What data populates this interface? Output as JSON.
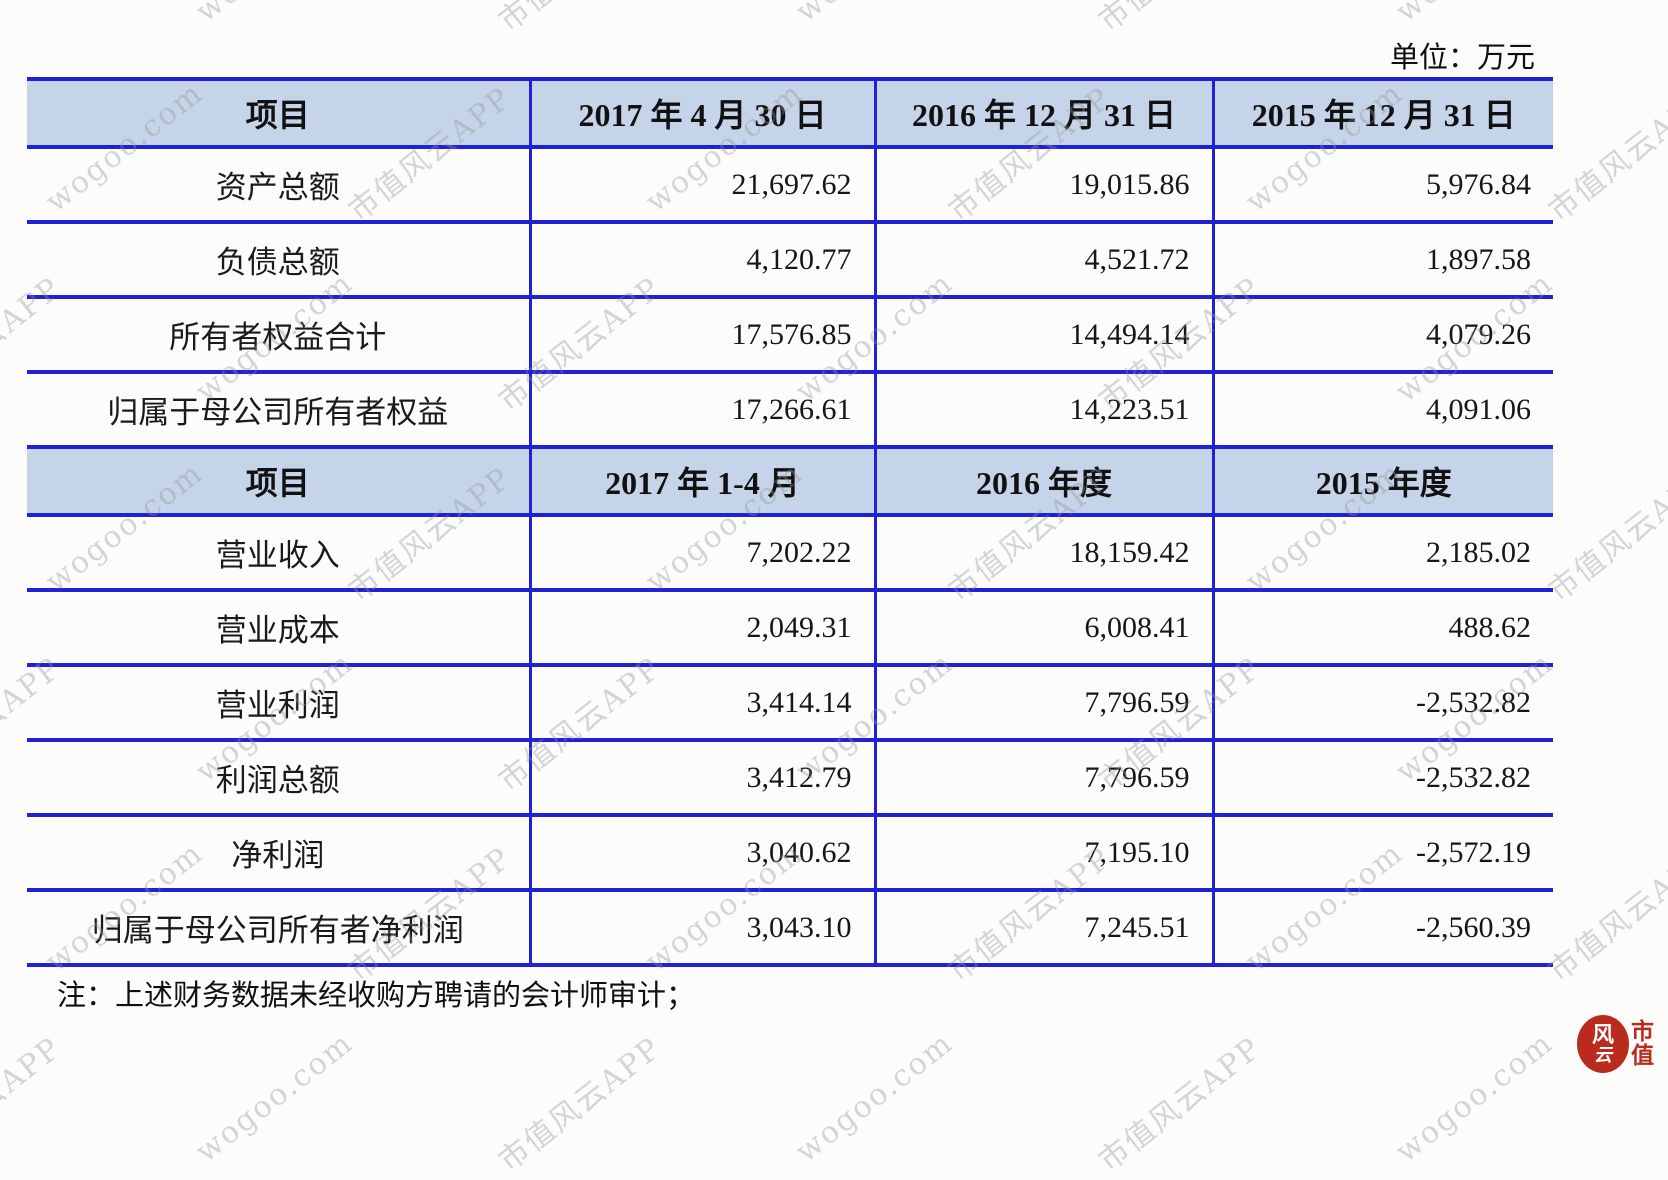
{
  "unit_label": "单位：万元",
  "table": {
    "sections": [
      {
        "header": [
          "项目",
          "2017 年 4 月 30 日",
          "2016 年 12 月 31 日",
          "2015 年 12 月 31 日"
        ],
        "rows": [
          [
            "资产总额",
            "21,697.62",
            "19,015.86",
            "5,976.84"
          ],
          [
            "负债总额",
            "4,120.77",
            "4,521.72",
            "1,897.58"
          ],
          [
            "所有者权益合计",
            "17,576.85",
            "14,494.14",
            "4,079.26"
          ],
          [
            "归属于母公司所有者权益",
            "17,266.61",
            "14,223.51",
            "4,091.06"
          ]
        ]
      },
      {
        "header": [
          "项目",
          "2017 年 1-4 月",
          "2016 年度",
          "2015 年度"
        ],
        "rows": [
          [
            "营业收入",
            "7,202.22",
            "18,159.42",
            "2,185.02"
          ],
          [
            "营业成本",
            "2,049.31",
            "6,008.41",
            "488.62"
          ],
          [
            "营业利润",
            "3,414.14",
            "7,796.59",
            "-2,532.82"
          ],
          [
            "利润总额",
            "3,412.79",
            "7,796.59",
            "-2,532.82"
          ],
          [
            "净利润",
            "3,040.62",
            "7,195.10",
            "-2,572.19"
          ],
          [
            "归属于母公司所有者净利润",
            "3,043.10",
            "7,245.51",
            "-2,560.39"
          ]
        ]
      }
    ]
  },
  "note": "注：上述财务数据未经收购方聘请的会计师审计；",
  "watermark": {
    "texts": [
      "市值风云APP",
      "wogoo.com"
    ]
  },
  "logo": {
    "seal_char_1": "风",
    "seal_char_2": "云",
    "side_char_1": "市",
    "side_char_2": "值"
  },
  "colors": {
    "border_blue": "#2121d8",
    "header_bg": "#c6d4e9",
    "seal_red": "#bb2b1d"
  }
}
